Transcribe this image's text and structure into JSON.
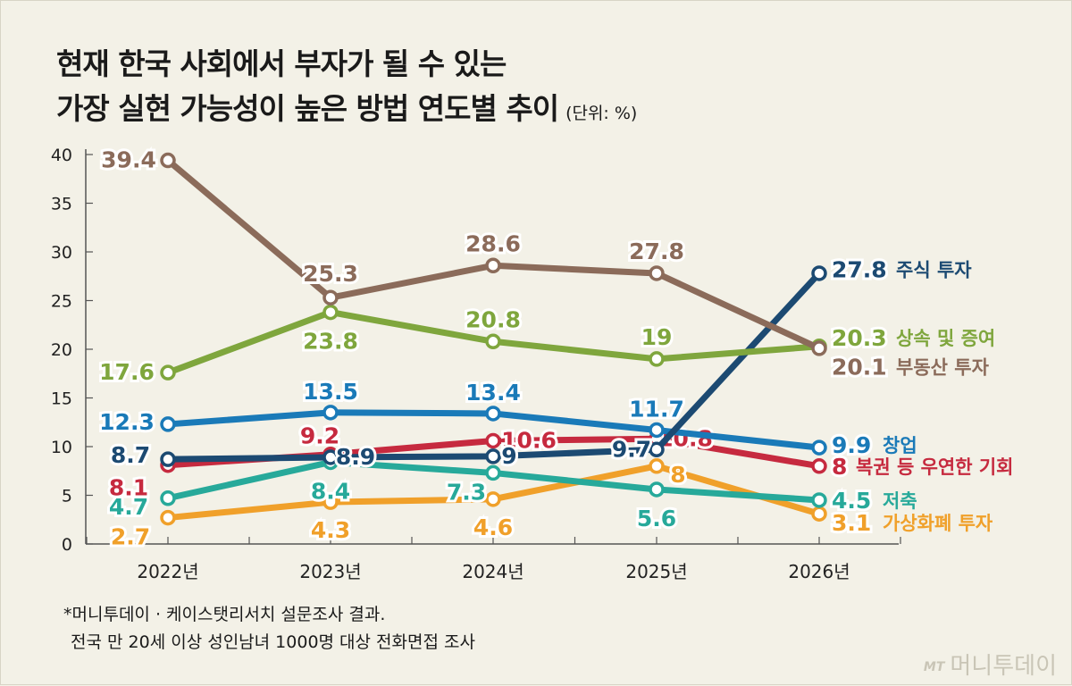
{
  "title": {
    "line1": "현재 한국 사회에서 부자가 될 수 있는",
    "line2": "가장 실현 가능성이 높은 방법 연도별 추이",
    "unit": "(단위: %)"
  },
  "note": {
    "line1": "*머니투데이 · 케이스탯리서치 설문조사 결과.",
    "line2": "전국 만 20세 이상 성인남녀 1000명 대상 전화면접 조사"
  },
  "brand": {
    "mark": "MT",
    "name": "머니투데이"
  },
  "chart_data": {
    "type": "line",
    "categories": [
      "2022년",
      "2023년",
      "2024년",
      "2025년",
      "2026년"
    ],
    "ylim": [
      0,
      40
    ],
    "yticks": [
      0,
      5,
      10,
      15,
      20,
      25,
      30,
      35,
      40
    ],
    "grid": false,
    "legend": "right-end labels",
    "series": [
      {
        "name": "가상화폐 투자",
        "color": "#f0a02a",
        "values": [
          2.7,
          4.3,
          4.6,
          8,
          3.1
        ],
        "labels": [
          "2.7",
          "4.3",
          "4.6",
          "8",
          "3.1"
        ]
      },
      {
        "name": "저축",
        "color": "#27a99a",
        "values": [
          4.7,
          8.4,
          7.3,
          5.6,
          4.5
        ],
        "labels": [
          "4.7",
          "8.4",
          "7.3",
          "5.6",
          "4.5"
        ]
      },
      {
        "name": "복권 등 우연한 기회",
        "color": "#c62a3f",
        "values": [
          8.1,
          9.2,
          10.6,
          10.8,
          8
        ],
        "labels": [
          "8.1",
          "9.2",
          "10.6",
          "10.8",
          "8"
        ]
      },
      {
        "name": "창업",
        "color": "#1a7ab8",
        "values": [
          12.3,
          13.5,
          13.4,
          11.7,
          9.9
        ],
        "labels": [
          "12.3",
          "13.5",
          "13.4",
          "11.7",
          "9.9"
        ]
      },
      {
        "name": "주식 투자",
        "color": "#1c4a72",
        "values": [
          8.7,
          8.9,
          9,
          9.7,
          27.8
        ],
        "labels": [
          "8.7",
          "8.9",
          "9",
          "9.7",
          "27.8"
        ]
      },
      {
        "name": "상속 및 증여",
        "color": "#7fa63d",
        "values": [
          17.6,
          23.8,
          20.8,
          19,
          20.3
        ],
        "labels": [
          "17.6",
          "23.8",
          "20.8",
          "19",
          "20.3"
        ]
      },
      {
        "name": "부동산 투자",
        "color": "#8b6b5a",
        "values": [
          39.4,
          25.3,
          28.6,
          27.8,
          20.1
        ],
        "labels": [
          "39.4",
          "25.3",
          "28.6",
          "27.8",
          "20.1"
        ]
      }
    ]
  }
}
